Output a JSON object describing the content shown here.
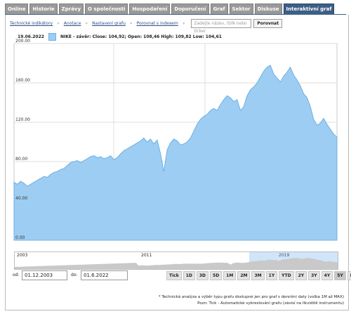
{
  "tabs": [
    {
      "label": "Online"
    },
    {
      "label": "Historie"
    },
    {
      "label": "Zprávy"
    },
    {
      "label": "O společnosti"
    },
    {
      "label": "Hospodaření"
    },
    {
      "label": "Doporučení"
    },
    {
      "label": "Graf"
    },
    {
      "label": "Sektor"
    },
    {
      "label": "Diskuse"
    },
    {
      "label": "Interaktivní graf"
    }
  ],
  "toolbar": {
    "links": [
      "Technické indikátory",
      "Anotace",
      "Nastavení grafu",
      "Porovnat s indexem"
    ],
    "search_placeholder": "Zadejte název, ISIN nebo ticker",
    "compare_label": "Porovnat"
  },
  "legend": {
    "date": "19.06.2022",
    "text": "NIKE - závěr: Close: 104,92; Open: 108,46 High: 109,82 Low: 104,61",
    "color": "#9dcdf2"
  },
  "chart_data": {
    "type": "area",
    "series": [
      {
        "name": "NIKE - závěr",
        "values": [
          59,
          57,
          60,
          58,
          55,
          57,
          59,
          61,
          63,
          65,
          64,
          67,
          69,
          70,
          72,
          73,
          76,
          79,
          80,
          81,
          79,
          81,
          83,
          85,
          86,
          84,
          85,
          83,
          84,
          86,
          82,
          84,
          88,
          91,
          93,
          95,
          97,
          99,
          101,
          104,
          100,
          103,
          98,
          102,
          88,
          70,
          92,
          99,
          103,
          101,
          97,
          98,
          100,
          104,
          111,
          118,
          123,
          126,
          128,
          132,
          134,
          132,
          138,
          143,
          147,
          145,
          141,
          143,
          132,
          136,
          147,
          153,
          156,
          160,
          166,
          172,
          176,
          178,
          169,
          165,
          161,
          167,
          171,
          176,
          168,
          163,
          157,
          149,
          145,
          136,
          123,
          117,
          119,
          124,
          118,
          113,
          108,
          105
        ]
      }
    ],
    "ylim": [
      0,
      200
    ],
    "yticks": [
      "200.00",
      "160.00",
      "120.00",
      "80.00",
      "40.00",
      "0.00"
    ],
    "grid": true
  },
  "navigator": {
    "labels": [
      "2003",
      "2011",
      "2019"
    ]
  },
  "range": {
    "from_label": "od:",
    "from_value": "01.12.2003",
    "to_label": "do:",
    "to_value": "01.6.2022"
  },
  "zoom_buttons": [
    "Tick",
    "1D",
    "3D",
    "5D",
    "1M",
    "2M",
    "3M",
    "1Y",
    "YTD",
    "2Y",
    "3Y",
    "4Y",
    "5Y",
    "Max"
  ],
  "zoom_active": "5Y",
  "notes": [
    "* Technická analýza a výběr typu grafu dostupné jen pro graf s denními daty (volba 1M až MAX)",
    "Pozn: Tick - Automatické vykreslování grafu (závisí na likviditě instrumentu)"
  ]
}
